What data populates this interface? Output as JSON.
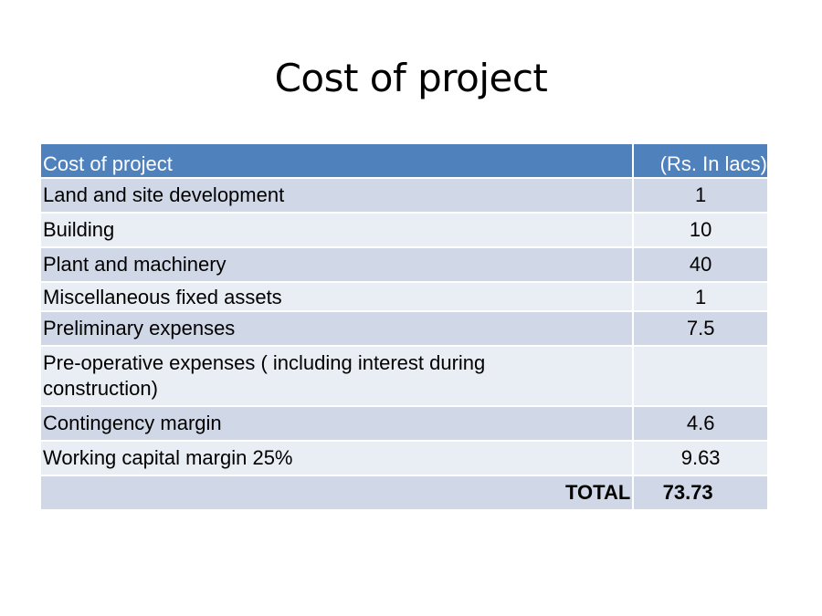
{
  "slide": {
    "title": "Cost of project"
  },
  "table": {
    "header": {
      "item": "Cost of project",
      "amount": "(Rs. In lacs)"
    },
    "rows": [
      {
        "item": "Land and site development",
        "amount": "1"
      },
      {
        "item": "Building",
        "amount": "10"
      },
      {
        "item": "Plant and machinery",
        "amount": "40"
      },
      {
        "item": "Miscellaneous fixed assets",
        "amount": "1"
      },
      {
        "item": "Preliminary expenses",
        "amount": "7.5"
      },
      {
        "item": "Pre-operative expenses ( including interest during construction)",
        "amount": ""
      },
      {
        "item": "Contingency margin",
        "amount": "4.6"
      },
      {
        "item": "Working capital margin 25%",
        "amount": "9.63"
      }
    ],
    "total": {
      "label": "TOTAL",
      "amount": "73.73"
    }
  },
  "colors": {
    "header_bg": "#4f81bd",
    "row_dark": "#d0d8e8",
    "row_light": "#e9edf4",
    "header_text": "#ffffff",
    "body_text": "#000000"
  }
}
